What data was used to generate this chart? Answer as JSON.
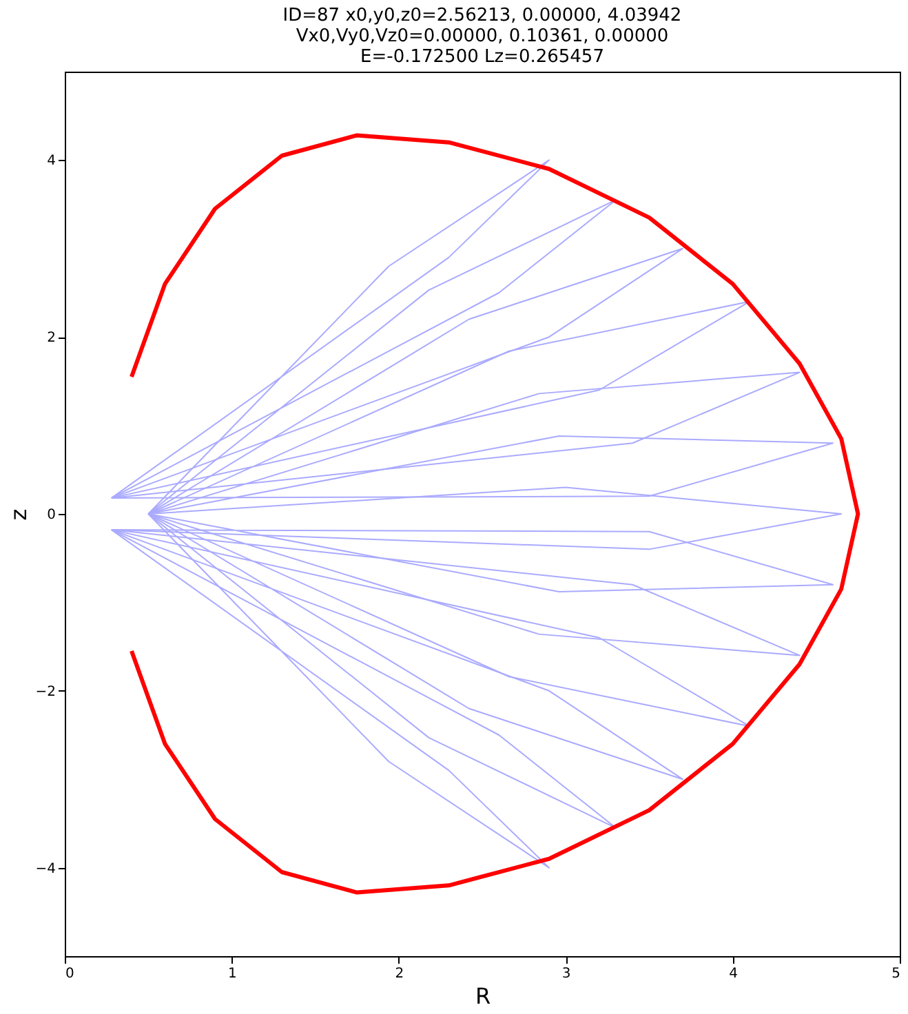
{
  "chart_data": {
    "type": "line",
    "title": [
      "ID=87      x0,y0,z0=2.56213, 0.00000, 4.03942",
      "Vx0,Vy0,Vz0=0.00000, 0.10361, 0.00000",
      "E=-0.172500    Lz=0.265457"
    ],
    "xlabel": "R",
    "ylabel": "z",
    "xlim": [
      0,
      5
    ],
    "ylim": [
      -5,
      5
    ],
    "xticks": [
      0,
      1,
      2,
      3,
      4,
      5
    ],
    "yticks": [
      -4,
      -2,
      0,
      2,
      4
    ],
    "grid": false,
    "marker": "none",
    "line_style": "solid",
    "series": [
      {
        "color": "#aaaaff",
        "x": [
          0.5,
          1.94,
          2.9,
          2.3,
          0.28
        ],
        "values": [
          0,
          2.8,
          4.0,
          2.9,
          0.18
        ]
      },
      {
        "color": "#aaaaff",
        "x": [
          0.5,
          2.18,
          3.3,
          2.6,
          0.28
        ],
        "values": [
          0,
          2.53,
          3.55,
          2.5,
          0.18
        ]
      },
      {
        "color": "#aaaaff",
        "x": [
          0.5,
          2.42,
          3.7,
          2.9,
          0.28
        ],
        "values": [
          0,
          2.2,
          3.0,
          2.0,
          0.18
        ]
      },
      {
        "color": "#aaaaff",
        "x": [
          0.5,
          2.66,
          4.1,
          3.2,
          0.28
        ],
        "values": [
          0,
          1.84,
          2.4,
          1.4,
          0.18
        ]
      },
      {
        "color": "#aaaaff",
        "x": [
          0.5,
          2.84,
          4.4,
          3.4,
          0.28
        ],
        "values": [
          0,
          1.36,
          1.6,
          0.8,
          0.18
        ]
      },
      {
        "color": "#aaaaff",
        "x": [
          0.5,
          2.96,
          4.6,
          3.5,
          0.28
        ],
        "values": [
          0,
          0.88,
          0.8,
          0.2,
          0.18
        ]
      },
      {
        "color": "#aaaaff",
        "x": [
          0.5,
          3.0,
          4.65,
          3.5,
          0.28
        ],
        "values": [
          0,
          0.3,
          0.0,
          -0.4,
          -0.18
        ]
      },
      {
        "color": "#aaaaff",
        "x": [
          0.5,
          2.96,
          4.6,
          3.5,
          0.28
        ],
        "values": [
          0,
          -0.88,
          -0.8,
          -0.2,
          -0.18
        ]
      },
      {
        "color": "#aaaaff",
        "x": [
          0.5,
          2.84,
          4.4,
          3.4,
          0.28
        ],
        "values": [
          0,
          -1.36,
          -1.6,
          -0.8,
          -0.18
        ]
      },
      {
        "color": "#aaaaff",
        "x": [
          0.5,
          2.66,
          4.1,
          3.2,
          0.28
        ],
        "values": [
          0,
          -1.84,
          -2.4,
          -1.4,
          -0.18
        ]
      },
      {
        "color": "#aaaaff",
        "x": [
          0.5,
          2.42,
          3.7,
          2.9,
          0.28
        ],
        "values": [
          0,
          -2.2,
          -3.0,
          -2.0,
          -0.18
        ]
      },
      {
        "color": "#aaaaff",
        "x": [
          0.5,
          2.18,
          3.3,
          2.6,
          0.28
        ],
        "values": [
          0,
          -2.53,
          -3.55,
          -2.5,
          -0.18
        ]
      },
      {
        "color": "#aaaaff",
        "x": [
          0.5,
          1.94,
          2.9,
          2.3,
          0.28
        ],
        "values": [
          0,
          -2.8,
          -4.0,
          -2.9,
          -0.18
        ]
      },
      {
        "color": "#ff0000",
        "x": [
          0.4,
          0.6,
          0.9,
          1.3,
          1.75,
          2.3,
          2.9,
          3.5,
          4.0,
          4.4,
          4.65,
          4.75,
          4.65,
          4.4,
          4.0,
          3.5,
          2.9,
          2.3,
          1.75,
          1.3,
          0.9,
          0.6,
          0.4
        ],
        "values": [
          1.55,
          2.6,
          3.45,
          4.05,
          4.28,
          4.2,
          3.9,
          3.35,
          2.6,
          1.7,
          0.85,
          0,
          -0.85,
          -1.7,
          -2.6,
          -3.35,
          -3.9,
          -4.2,
          -4.28,
          -4.05,
          -3.45,
          -2.6,
          -1.55
        ]
      }
    ]
  }
}
